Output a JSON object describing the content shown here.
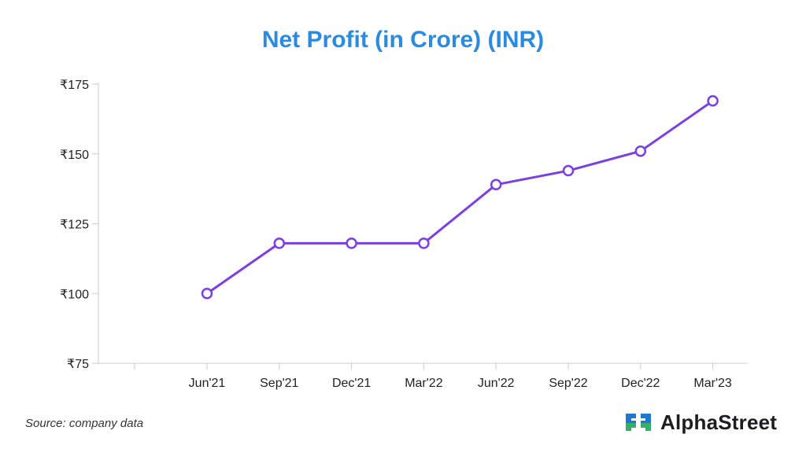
{
  "title": "Net Profit (in Crore) (INR)",
  "source": "Source: company data",
  "brand": {
    "name": "AlphaStreet",
    "logo_icon": "alphastreet-logo-icon"
  },
  "colors": {
    "title": "#2a8be0",
    "line": "#7b3fe4",
    "axis": "#cccccc",
    "logo_blue": "#1f77d0",
    "logo_green": "#35b06b"
  },
  "chart_data": {
    "type": "line",
    "categories": [
      "Jun'21",
      "Sep'21",
      "Dec'21",
      "Mar'22",
      "Jun'22",
      "Sep'22",
      "Dec'22",
      "Mar'23"
    ],
    "series": [
      {
        "values": [
          100,
          118,
          118,
          118,
          139,
          144,
          151,
          169
        ]
      }
    ],
    "y_tick_labels": [
      "₹75",
      "₹100",
      "₹125",
      "₹150",
      "₹175"
    ],
    "y_ticks": [
      75,
      100,
      125,
      150,
      175
    ],
    "ylim": [
      75,
      175
    ],
    "grid": false,
    "markers": "hollow-circle",
    "title": "Net Profit (in Crore) (INR)",
    "xlabel": "",
    "ylabel": ""
  }
}
